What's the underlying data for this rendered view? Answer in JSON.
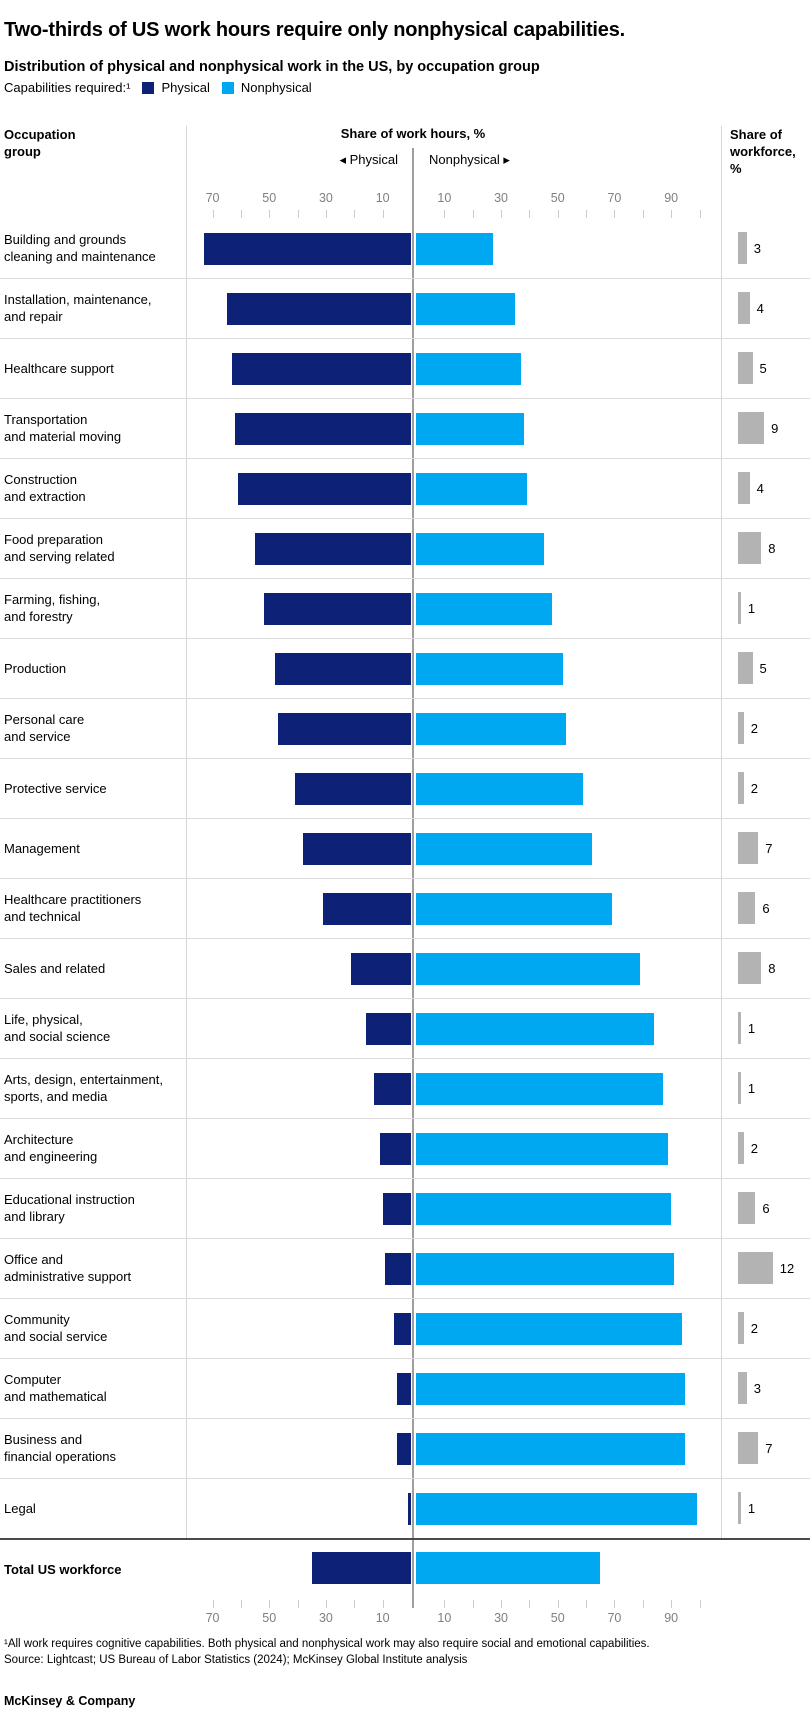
{
  "title": "Two-thirds of US work hours require only nonphysical capabilities.",
  "subtitle": "Distribution of physical and nonphysical work in the US, by occupation group",
  "legend": {
    "label": "Capabilities required:¹",
    "items": [
      {
        "name": "Physical",
        "color": "#0d2177"
      },
      {
        "name": "Nonphysical",
        "color": "#00a8f1"
      }
    ]
  },
  "columns": {
    "occupation": [
      "Occupation",
      "group"
    ],
    "hours": "Share of work hours, %",
    "physical_side": "◂ Physical",
    "nonphysical_side": "Nonphysical ▸",
    "workforce": [
      "Share of",
      "workforce,",
      "%"
    ]
  },
  "axis": {
    "left_ticks": [
      70,
      60,
      50,
      40,
      30,
      20,
      10
    ],
    "left_labeled": [
      70,
      50,
      30,
      10
    ],
    "right_ticks": [
      10,
      20,
      30,
      40,
      50,
      60,
      70,
      80,
      90,
      100
    ],
    "right_labeled": [
      10,
      30,
      50,
      70,
      90
    ]
  },
  "rows": [
    {
      "lines": [
        "Building and grounds",
        "cleaning and maintenance"
      ],
      "physical": 73,
      "nonphysical": 27,
      "share": 3
    },
    {
      "lines": [
        "Installation, maintenance,",
        "and repair"
      ],
      "physical": 65,
      "nonphysical": 35,
      "share": 4
    },
    {
      "lines": [
        "Healthcare support"
      ],
      "physical": 63,
      "nonphysical": 37,
      "share": 5
    },
    {
      "lines": [
        "Transportation",
        "and material moving"
      ],
      "physical": 62,
      "nonphysical": 38,
      "share": 9
    },
    {
      "lines": [
        "Construction",
        "and extraction"
      ],
      "physical": 61,
      "nonphysical": 39,
      "share": 4
    },
    {
      "lines": [
        "Food preparation",
        "and serving related"
      ],
      "physical": 55,
      "nonphysical": 45,
      "share": 8
    },
    {
      "lines": [
        "Farming, fishing,",
        "and forestry"
      ],
      "physical": 52,
      "nonphysical": 48,
      "share": 1
    },
    {
      "lines": [
        "Production"
      ],
      "physical": 48,
      "nonphysical": 52,
      "share": 5
    },
    {
      "lines": [
        "Personal care",
        "and service"
      ],
      "physical": 47,
      "nonphysical": 53,
      "share": 2
    },
    {
      "lines": [
        "Protective service"
      ],
      "physical": 41,
      "nonphysical": 59,
      "share": 2
    },
    {
      "lines": [
        "Management"
      ],
      "physical": 38,
      "nonphysical": 62,
      "share": 7
    },
    {
      "lines": [
        "Healthcare practitioners",
        "and technical"
      ],
      "physical": 31,
      "nonphysical": 69,
      "share": 6
    },
    {
      "lines": [
        "Sales and related"
      ],
      "physical": 21,
      "nonphysical": 79,
      "share": 8
    },
    {
      "lines": [
        "Life, physical,",
        "and social science"
      ],
      "physical": 16,
      "nonphysical": 84,
      "share": 1
    },
    {
      "lines": [
        "Arts, design, entertainment,",
        "sports, and media"
      ],
      "physical": 13,
      "nonphysical": 87,
      "share": 1
    },
    {
      "lines": [
        "Architecture",
        "and engineering"
      ],
      "physical": 11,
      "nonphysical": 89,
      "share": 2
    },
    {
      "lines": [
        "Educational instruction",
        "and library"
      ],
      "physical": 10,
      "nonphysical": 90,
      "share": 6
    },
    {
      "lines": [
        "Office and",
        "administrative support"
      ],
      "physical": 9,
      "nonphysical": 91,
      "share": 12
    },
    {
      "lines": [
        "Community",
        "and social service"
      ],
      "physical": 6,
      "nonphysical": 94,
      "share": 2
    },
    {
      "lines": [
        "Computer",
        "and mathematical"
      ],
      "physical": 5,
      "nonphysical": 95,
      "share": 3
    },
    {
      "lines": [
        "Business and",
        "financial operations"
      ],
      "physical": 5,
      "nonphysical": 95,
      "share": 7
    },
    {
      "lines": [
        "Legal"
      ],
      "physical": 1,
      "nonphysical": 99,
      "share": 1
    }
  ],
  "total": {
    "label": "Total US workforce",
    "physical": 35,
    "nonphysical": 65
  },
  "chart_data": {
    "type": "bar",
    "title": "Distribution of physical and nonphysical work in the US, by occupation group",
    "xlabel": "Share of work hours, %",
    "categories": [
      "Building and grounds cleaning and maintenance",
      "Installation, maintenance, and repair",
      "Healthcare support",
      "Transportation and material moving",
      "Construction and extraction",
      "Food preparation and serving related",
      "Farming, fishing, and forestry",
      "Production",
      "Personal care and service",
      "Protective service",
      "Management",
      "Healthcare practitioners and technical",
      "Sales and related",
      "Life, physical, and social science",
      "Arts, design, entertainment, sports, and media",
      "Architecture and engineering",
      "Educational instruction and library",
      "Office and administrative support",
      "Community and social service",
      "Computer and mathematical",
      "Business and financial operations",
      "Legal"
    ],
    "series": [
      {
        "name": "Physical",
        "values": [
          73,
          65,
          63,
          62,
          61,
          55,
          52,
          48,
          47,
          41,
          38,
          31,
          21,
          16,
          13,
          11,
          10,
          9,
          6,
          5,
          5,
          1
        ]
      },
      {
        "name": "Nonphysical",
        "values": [
          27,
          35,
          37,
          38,
          39,
          45,
          48,
          52,
          53,
          59,
          62,
          69,
          79,
          84,
          87,
          89,
          90,
          91,
          94,
          95,
          95,
          99
        ]
      },
      {
        "name": "Share of workforce, %",
        "values": [
          3,
          4,
          5,
          9,
          4,
          8,
          1,
          5,
          2,
          2,
          7,
          6,
          8,
          1,
          1,
          2,
          6,
          12,
          2,
          3,
          7,
          1
        ]
      }
    ],
    "total": {
      "label": "Total US workforce",
      "physical": 35,
      "nonphysical": 65
    },
    "axis_range_physical": [
      0,
      70
    ],
    "axis_range_nonphysical": [
      0,
      100
    ],
    "layout": "diverging horizontal bars, physical left / nonphysical right, workforce share column at right"
  },
  "footnotes": [
    "¹All work requires cognitive capabilities. Both physical and nonphysical work may also require social and emotional capabilities.",
    "Source: Lightcast; US Bureau of Labor Statistics (2024); McKinsey Global Institute analysis"
  ],
  "footer": "McKinsey & Company",
  "colors": {
    "physical": "#0d2177",
    "nonphysical": "#00a8f1",
    "workforce_bar": "#b3b3b3",
    "grid": "#dcdcdc",
    "divider": "#d6d6d6",
    "thick_divider": "#4a4a4a",
    "center_line": "#9e9e9e",
    "tick": "#cccccc",
    "tick_label": "#7f7f7f"
  }
}
